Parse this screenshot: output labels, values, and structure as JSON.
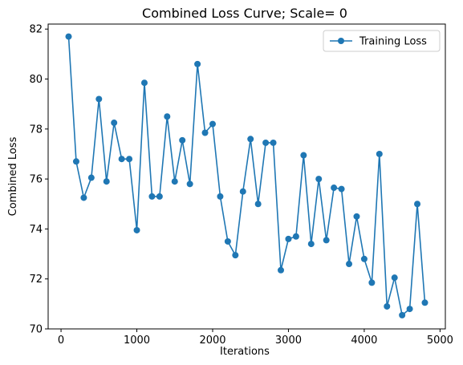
{
  "colors": {
    "series": "#1f77b4",
    "axis": "#000000",
    "legend_border": "#cccccc",
    "background": "#ffffff"
  },
  "chart_data": {
    "type": "line",
    "title": "Combined Loss Curve; Scale= 0",
    "xlabel": "Iterations",
    "ylabel": "Combined Loss",
    "xlim": [
      -170,
      5070
    ],
    "ylim": [
      70,
      82.2
    ],
    "xticks": [
      0,
      1000,
      2000,
      3000,
      4000,
      5000
    ],
    "yticks": [
      70,
      72,
      74,
      76,
      78,
      80,
      82
    ],
    "grid": false,
    "legend": {
      "position": "top-right"
    },
    "series": [
      {
        "name": "Training Loss",
        "marker": "circle",
        "x": [
          100,
          200,
          300,
          400,
          500,
          600,
          700,
          800,
          900,
          1000,
          1100,
          1200,
          1300,
          1400,
          1500,
          1600,
          1700,
          1800,
          1900,
          2000,
          2100,
          2200,
          2300,
          2400,
          2500,
          2600,
          2700,
          2800,
          2900,
          3000,
          3100,
          3200,
          3300,
          3400,
          3500,
          3600,
          3700,
          3800,
          3900,
          4000,
          4100,
          4200,
          4300,
          4400,
          4500,
          4600,
          4700,
          4800
        ],
        "values": [
          81.7,
          76.7,
          75.25,
          76.05,
          79.2,
          75.9,
          78.25,
          76.8,
          76.8,
          73.95,
          79.85,
          75.3,
          75.3,
          78.5,
          75.9,
          77.55,
          75.8,
          80.6,
          77.85,
          78.2,
          75.3,
          73.5,
          72.95,
          75.5,
          77.6,
          75.0,
          77.45,
          77.45,
          72.35,
          73.6,
          73.7,
          76.95,
          73.4,
          76.0,
          73.55,
          75.65,
          75.6,
          72.6,
          74.5,
          72.8,
          71.85,
          77.0,
          70.9,
          72.05,
          70.55,
          70.8,
          75.0,
          71.05
        ]
      }
    ]
  }
}
